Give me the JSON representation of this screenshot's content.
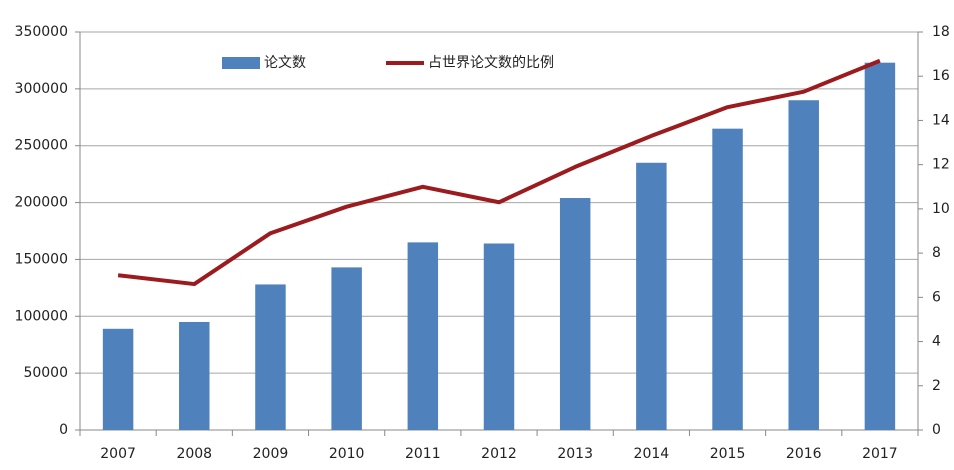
{
  "chart_data": {
    "type": "bar-line",
    "categories": [
      "2007",
      "2008",
      "2009",
      "2010",
      "2011",
      "2012",
      "2013",
      "2014",
      "2015",
      "2016",
      "2017"
    ],
    "series": [
      {
        "name": "论文数",
        "type": "bar",
        "color": "#4f81bd",
        "values": [
          89000,
          95000,
          128000,
          143000,
          165000,
          164000,
          204000,
          235000,
          265000,
          290000,
          323000
        ]
      },
      {
        "name": "占世界论文数的比例",
        "type": "line",
        "axis": "y2",
        "color": "#9b1b1e",
        "values": [
          7.0,
          6.6,
          8.9,
          10.1,
          11.0,
          10.3,
          11.9,
          13.3,
          14.6,
          15.3,
          16.7
        ]
      }
    ],
    "ylim": [
      0,
      350000
    ],
    "yticks": [
      0,
      50000,
      100000,
      150000,
      200000,
      250000,
      300000,
      350000
    ],
    "y2lim": [
      0,
      18
    ],
    "y2ticks": [
      0,
      2,
      4,
      6,
      8,
      10,
      12,
      14,
      16,
      18
    ],
    "grid": true,
    "legend": "top"
  }
}
